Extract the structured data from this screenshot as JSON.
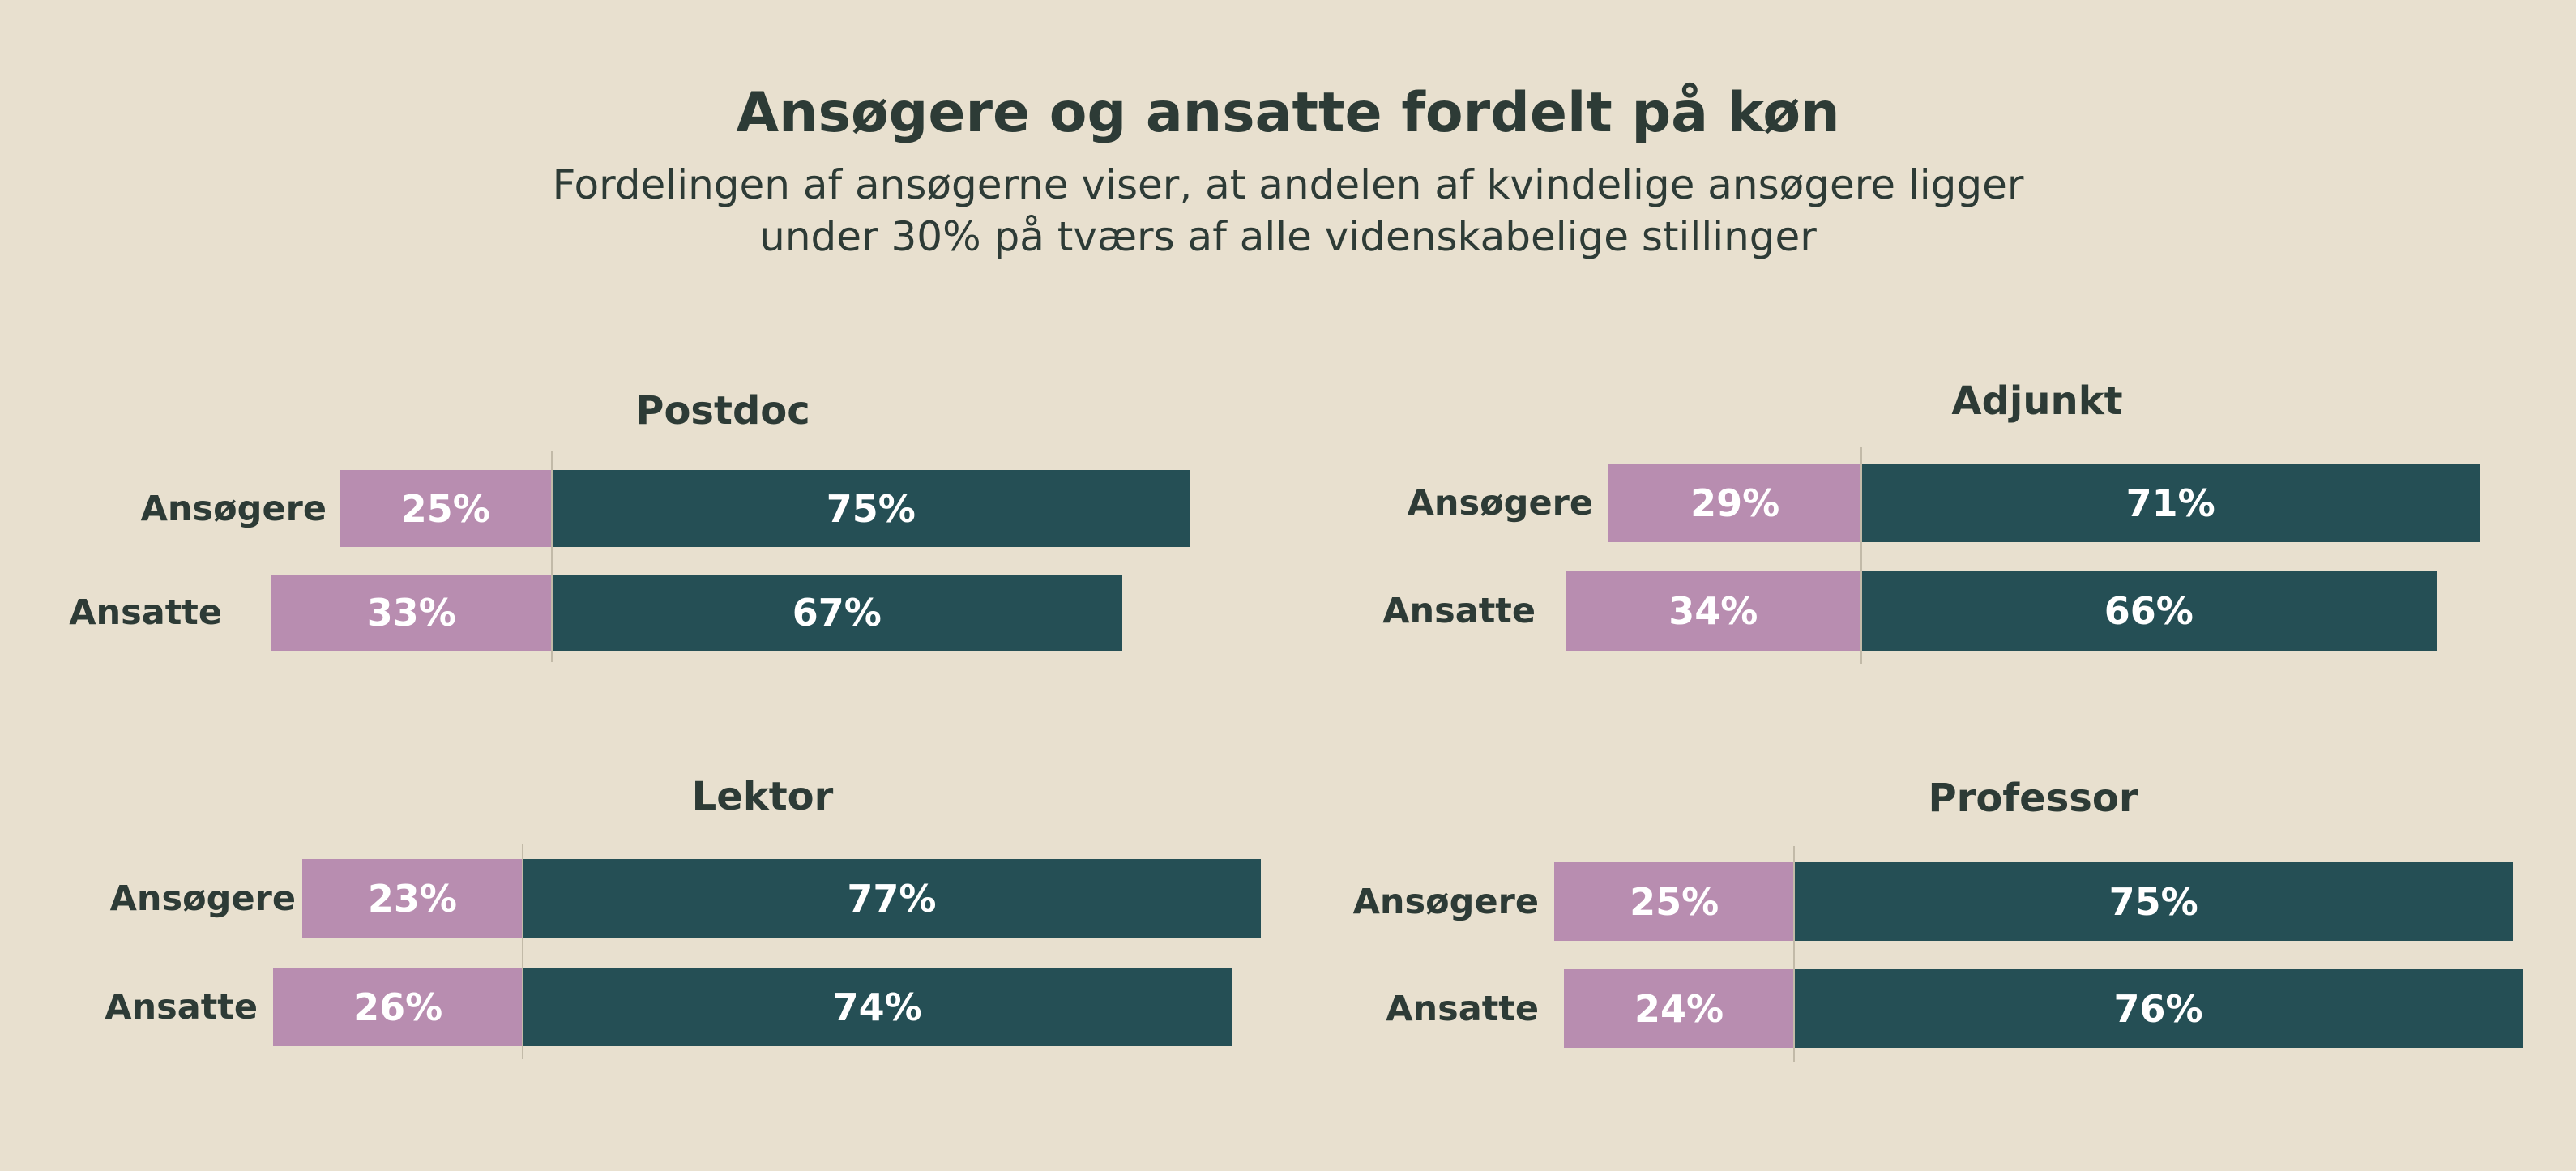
{
  "chart_data": {
    "type": "bar",
    "orientation": "horizontal-diverging-stacked",
    "title": "Ansøgere og ansatte fordelt på køn",
    "subtitle_lines": [
      "Fordelingen af ansøgerne viser, at andelen af kvindelige ansøgere ligger",
      "under 30% på tværs af alle videnskabelige stillinger"
    ],
    "colors": {
      "left": "#b88db0",
      "right": "#254f55",
      "background": "#e8e0cf",
      "text": "#2d3b36"
    },
    "panels": [
      {
        "title": "Postdoc",
        "categories": [
          "Ansøgere",
          "Ansatte"
        ],
        "left": [
          25,
          33
        ],
        "right": [
          75,
          67
        ],
        "left_labels": [
          "25%",
          "33%"
        ],
        "right_labels": [
          "75%",
          "67%"
        ]
      },
      {
        "title": "Adjunkt",
        "categories": [
          "Ansøgere",
          "Ansatte"
        ],
        "left": [
          29,
          34
        ],
        "right": [
          71,
          66
        ],
        "left_labels": [
          "29%",
          "34%"
        ],
        "right_labels": [
          "71%",
          "66%"
        ]
      },
      {
        "title": "Lektor",
        "categories": [
          "Ansøgere",
          "Ansatte"
        ],
        "left": [
          23,
          26
        ],
        "right": [
          77,
          74
        ],
        "left_labels": [
          "23%",
          "26%"
        ],
        "right_labels": [
          "77%",
          "74%"
        ]
      },
      {
        "title": "Professor",
        "categories": [
          "Ansøgere",
          "Ansatte"
        ],
        "left": [
          25,
          24
        ],
        "right": [
          75,
          76
        ],
        "left_labels": [
          "25%",
          "24%"
        ],
        "right_labels": [
          "75%",
          "76%"
        ]
      }
    ]
  }
}
